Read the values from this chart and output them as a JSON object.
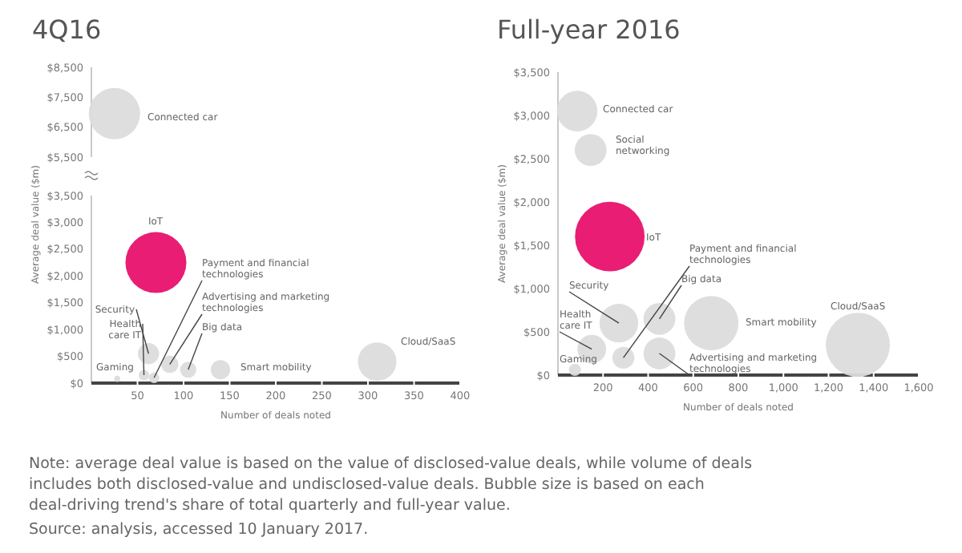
{
  "chart_data": [
    {
      "type": "bubble",
      "title": "4Q16",
      "tick_labels": "y",
      "xlim": [
        0,
        400
      ],
      "ylim": [
        5500,
        8500
      ],
      "yticks": [
        {
          "value": 5500,
          "label": "$5,500"
        },
        {
          "value": 6500,
          "label": "$6,500"
        },
        {
          "value": 7500,
          "label": "$7,500"
        },
        {
          "value": 8500,
          "label": "$8,500"
        }
      ],
      "series": [
        {
          "name": "Connected car",
          "color": "#dcdcdc",
          "x": [
            25
          ],
          "values": [
            6950
          ],
          "sizes": [
            1
          ]
        }
      ]
    },
    {
      "type": "bubble",
      "xlabel": "Number of deals noted",
      "ylabel": "Average deal value ($m)",
      "xlim": [
        0,
        400
      ],
      "xticks": [
        50,
        100,
        150,
        200,
        250,
        300,
        350,
        400
      ],
      "ylim": [
        0,
        3500
      ],
      "yticks": [
        {
          "value": 0,
          "label": "$0"
        },
        {
          "value": 500,
          "label": "$500"
        },
        {
          "value": 1000,
          "label": "$1,000"
        },
        {
          "value": 1500,
          "label": "$1,500"
        },
        {
          "value": 2000,
          "label": "$2,000"
        },
        {
          "value": 2500,
          "label": "$2,500"
        },
        {
          "value": 3000,
          "label": "$3,000"
        },
        {
          "value": 3500,
          "label": "$3,500"
        }
      ],
      "series": [
        {
          "name": "IoT",
          "color": "#e8116b",
          "x": [
            70
          ],
          "values": [
            2250
          ],
          "sizes": [
            1
          ]
        },
        {
          "name": "Security",
          "color": "#dcdcdc",
          "x": [
            62
          ],
          "values": [
            550
          ],
          "sizes": [
            0.12
          ]
        },
        {
          "name": "Health care IT",
          "color": "#dcdcdc",
          "x": [
            57
          ],
          "values": [
            150
          ],
          "sizes": [
            0.03
          ]
        },
        {
          "name": "Gaming",
          "color": "#dcdcdc",
          "x": [
            28
          ],
          "values": [
            80
          ],
          "sizes": [
            0.01
          ]
        },
        {
          "name": "Payment and financial technologies",
          "color": "#dcdcdc",
          "x": [
            68
          ],
          "values": [
            100
          ],
          "sizes": [
            0.03
          ]
        },
        {
          "name": "Advertising and marketing technologies",
          "color": "#dcdcdc",
          "x": [
            85
          ],
          "values": [
            350
          ],
          "sizes": [
            0.08
          ]
        },
        {
          "name": "Big data",
          "color": "#dcdcdc",
          "x": [
            105
          ],
          "values": [
            250
          ],
          "sizes": [
            0.07
          ]
        },
        {
          "name": "Smart mobility",
          "color": "#dcdcdc",
          "x": [
            140
          ],
          "values": [
            250
          ],
          "sizes": [
            0.1
          ]
        },
        {
          "name": "Cloud/SaaS",
          "color": "#dcdcdc",
          "x": [
            310
          ],
          "values": [
            400
          ],
          "sizes": [
            0.4
          ]
        }
      ],
      "annotations": [
        "Note: average deal value is based on the value of disclosed-value deals, while volume of deals includes both disclosed-value and undisclosed-value deals. Bubble size is based on each deal-driving trend's share of total quarterly and full-year value.",
        "Source: analysis, accessed 10 January 2017."
      ]
    },
    {
      "type": "bubble",
      "title": "Full-year 2016",
      "xlabel": "Number of deals noted",
      "ylabel": "Average deal value ($m)",
      "xlim": [
        0,
        1600
      ],
      "xticks": [
        200,
        400,
        600,
        800,
        {
          "value": 1000,
          "label": "1,000"
        },
        {
          "value": 1200,
          "label": "1,200"
        },
        {
          "value": 1400,
          "label": "1,400"
        },
        {
          "value": 1600,
          "label": "1,600"
        }
      ],
      "ylim": [
        0,
        3500
      ],
      "yticks": [
        {
          "value": 0,
          "label": "$0"
        },
        {
          "value": 500,
          "label": "$500"
        },
        {
          "value": 1000,
          "label": "$1,000"
        },
        {
          "value": 1500,
          "label": "$1,500"
        },
        {
          "value": 2000,
          "label": "$2,000"
        },
        {
          "value": 2500,
          "label": "$2,500"
        },
        {
          "value": 3000,
          "label": "$3,000"
        },
        {
          "value": 3500,
          "label": "$3,500"
        }
      ],
      "series": [
        {
          "name": "Connected car",
          "color": "#dcdcdc",
          "x": [
            85
          ],
          "values": [
            3050
          ],
          "sizes": [
            0.34
          ]
        },
        {
          "name": "Social networking",
          "color": "#dcdcdc",
          "x": [
            145
          ],
          "values": [
            2600
          ],
          "sizes": [
            0.21
          ]
        },
        {
          "name": "IoT",
          "color": "#e8116b",
          "x": [
            230
          ],
          "values": [
            1600
          ],
          "sizes": [
            1
          ]
        },
        {
          "name": "Security",
          "color": "#dcdcdc",
          "x": [
            270
          ],
          "values": [
            600
          ],
          "sizes": [
            0.31
          ]
        },
        {
          "name": "Health care IT",
          "color": "#dcdcdc",
          "x": [
            150
          ],
          "values": [
            300
          ],
          "sizes": [
            0.17
          ]
        },
        {
          "name": "Gaming",
          "color": "#dcdcdc",
          "x": [
            75
          ],
          "values": [
            60
          ],
          "sizes": [
            0.03
          ]
        },
        {
          "name": "Payment and financial technologies",
          "color": "#dcdcdc",
          "x": [
            290
          ],
          "values": [
            200
          ],
          "sizes": [
            0.1
          ]
        },
        {
          "name": "Big data",
          "color": "#dcdcdc",
          "x": [
            450
          ],
          "values": [
            650
          ],
          "sizes": [
            0.21
          ]
        },
        {
          "name": "Advertising and marketing technologies",
          "color": "#dcdcdc",
          "x": [
            450
          ],
          "values": [
            250
          ],
          "sizes": [
            0.21
          ]
        },
        {
          "name": "Smart mobility",
          "color": "#dcdcdc",
          "x": [
            680
          ],
          "values": [
            600
          ],
          "sizes": [
            0.61
          ]
        },
        {
          "name": "Cloud/SaaS",
          "color": "#dcdcdc",
          "x": [
            1330
          ],
          "values": [
            350
          ],
          "sizes": [
            0.85
          ]
        }
      ]
    }
  ]
}
